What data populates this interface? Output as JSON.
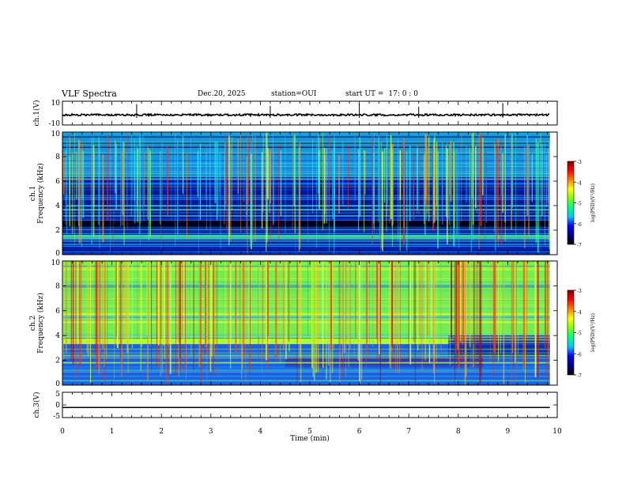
{
  "header": {
    "title": "VLF Spectra",
    "date": "Dec.20, 2025",
    "station_label": "station=",
    "station": "OUI",
    "start_label": "start  UT  =",
    "start_time": "17: 0  : 0"
  },
  "colors": {
    "spectro_dark": "#000020",
    "waveform": "#000000",
    "colormap": [
      "#000000",
      "#00008f",
      "#0000ff",
      "#00c8ff",
      "#00ff80",
      "#80ff00",
      "#ffff00",
      "#ff8000",
      "#ff0000",
      "#800000"
    ]
  },
  "chart_data": [
    {
      "type": "line",
      "name": "ch1-waveform",
      "ylabel": "ch.1(V)",
      "ylim": [
        -10,
        10
      ],
      "yticks": [
        "10",
        "-10"
      ],
      "x_range_min": [
        0,
        9.85
      ],
      "baseline_v": -1.5,
      "spikes_min": [
        1.5,
        4.2,
        6.0,
        7.2,
        8.9
      ]
    },
    {
      "type": "heatmap",
      "name": "ch1-spectrogram",
      "ylabel": "ch.1\nFrequency (kHz)",
      "ylim": [
        0,
        10
      ],
      "yticks": [
        "0",
        "2",
        "4",
        "6",
        "8",
        "10"
      ],
      "x_range_min": [
        0,
        9.85
      ],
      "colorbar": {
        "label": "log(PSD)(V²/Hz)",
        "range": [
          -7,
          -3
        ],
        "ticks": [
          "-3",
          "-4",
          "-5",
          "-6",
          "-7"
        ]
      },
      "bright_band_khz": [
        1.3,
        1.6
      ],
      "dark_band_khz": [
        2.2,
        2.8
      ]
    },
    {
      "type": "heatmap",
      "name": "ch2-spectrogram",
      "ylabel": "ch.2\nFrequency (kHz)",
      "ylim": [
        0,
        10
      ],
      "yticks": [
        "0",
        "2",
        "4",
        "6",
        "8",
        "10"
      ],
      "x_range_min": [
        0,
        9.85
      ],
      "colorbar": {
        "label": "log(PSD)(V²/Hz)",
        "range": [
          -7,
          -3
        ],
        "ticks": [
          "-3",
          "-4",
          "-5",
          "-6",
          "-7"
        ]
      },
      "bright_band_khz": [
        3.3,
        3.7
      ],
      "bright_band_end_min": 7.8
    },
    {
      "type": "line",
      "name": "ch3-waveform",
      "ylabel": "ch.3(V)",
      "ylim": [
        -5,
        5
      ],
      "yticks": [
        "5",
        "0",
        "-5"
      ],
      "x_range_min": [
        0,
        9.85
      ],
      "level_v": -1.0
    }
  ],
  "xaxis": {
    "label": "Time  (min)",
    "range": [
      0,
      10
    ],
    "ticks": [
      "0",
      "1",
      "2",
      "3",
      "4",
      "5",
      "6",
      "7",
      "8",
      "9",
      "10"
    ]
  }
}
